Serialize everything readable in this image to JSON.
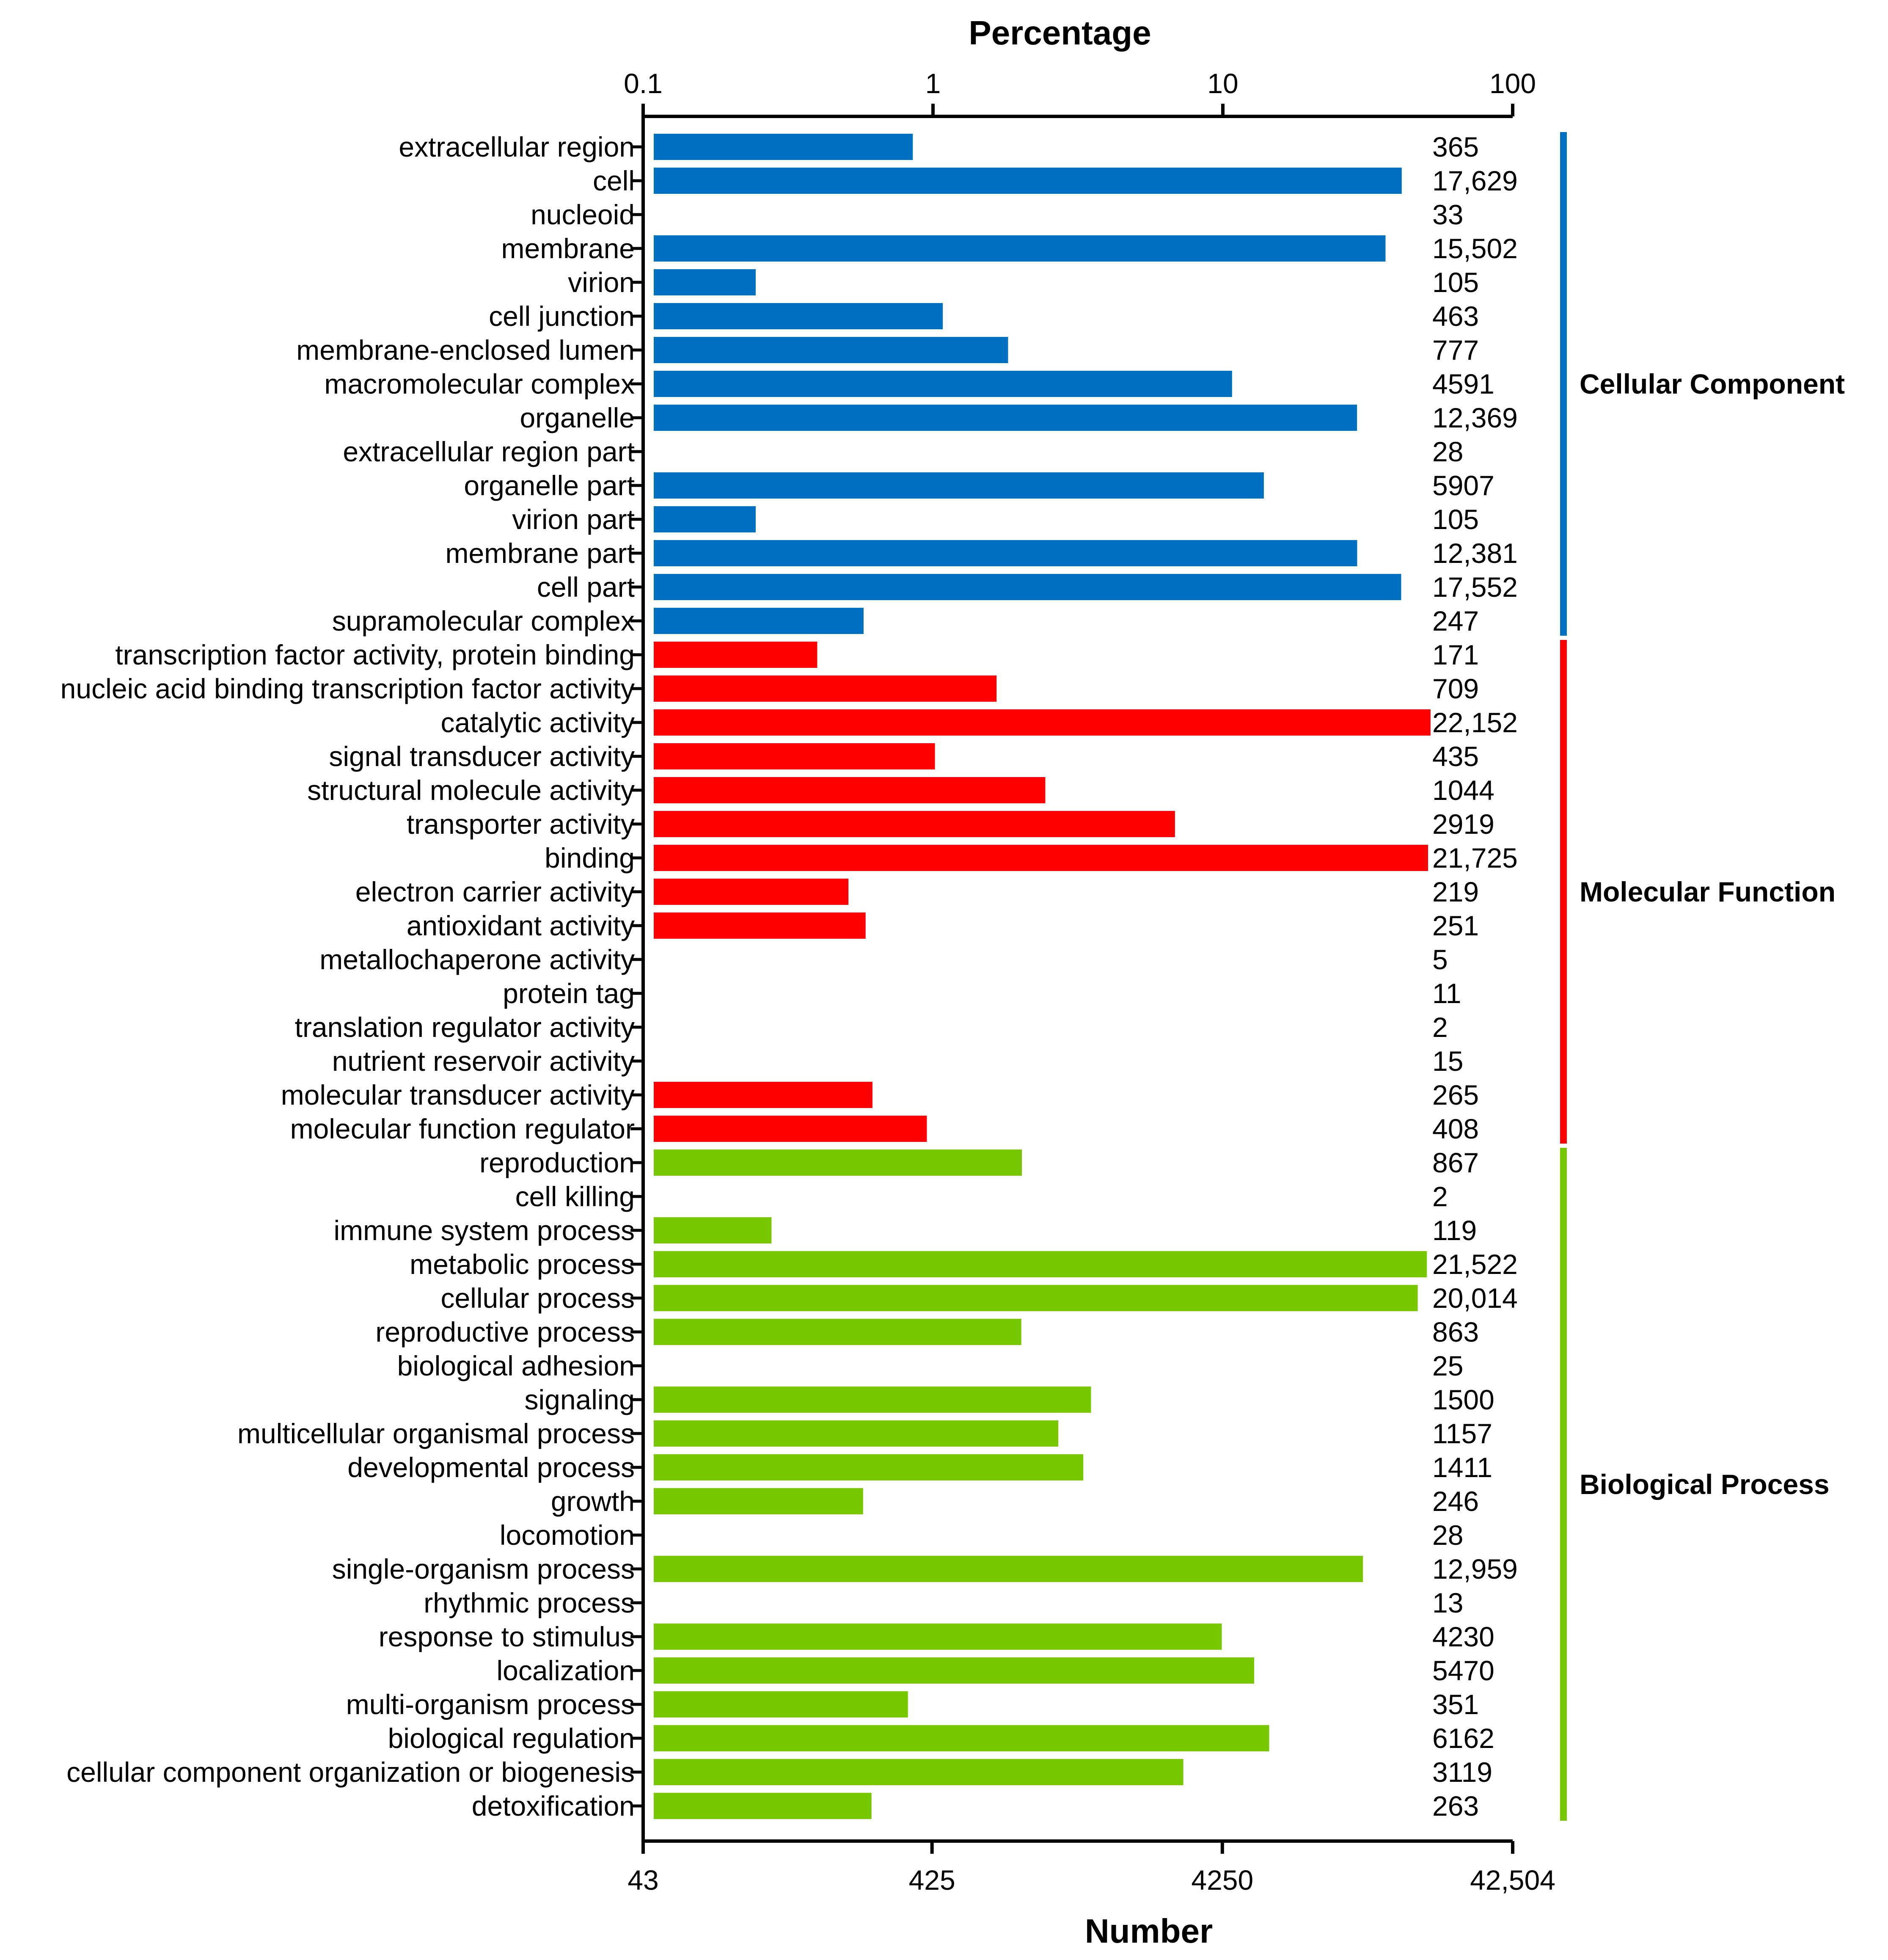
{
  "chart_data": {
    "type": "bar",
    "orientation": "horizontal",
    "x_scale": "log",
    "top_axis": {
      "title": "Percentage",
      "ticks": [
        0.1,
        1,
        10,
        100
      ],
      "tick_labels": [
        "0.1",
        "1",
        "10",
        "100"
      ],
      "range": [
        0.1,
        100
      ]
    },
    "bottom_axis": {
      "title": "Number",
      "ticks": [
        43,
        425,
        4250,
        42504
      ],
      "tick_labels": [
        "43",
        "425",
        "4250",
        "42,504"
      ],
      "range": [
        43,
        42504
      ]
    },
    "groups": [
      {
        "name": "Cellular Component",
        "color": "#0070C0",
        "start": 0,
        "end": 14
      },
      {
        "name": "Molecular Function",
        "color": "#FF0000",
        "start": 15,
        "end": 29
      },
      {
        "name": "Biological Process",
        "color": "#77C800",
        "start": 30,
        "end": 49
      }
    ],
    "categories": [
      "extracellular region",
      "cell",
      "nucleoid",
      "membrane",
      "virion",
      "cell junction",
      "membrane-enclosed lumen",
      "macromolecular complex",
      "organelle",
      "extracellular region part",
      "organelle part",
      "virion part",
      "membrane part",
      "cell part",
      "supramolecular complex",
      "transcription factor activity, protein binding",
      "nucleic acid binding transcription factor activity",
      "catalytic activity",
      "signal transducer activity",
      "structural molecule activity",
      "transporter activity",
      "binding",
      "electron carrier activity",
      "antioxidant activity",
      "metallochaperone activity",
      "protein tag",
      "translation regulator activity",
      "nutrient reservoir activity",
      "molecular transducer activity",
      "molecular function regulator",
      "reproduction",
      "cell killing",
      "immune system process",
      "metabolic process",
      "cellular process",
      "reproductive process",
      "biological adhesion",
      "signaling",
      "multicellular organismal process",
      "developmental process",
      "growth",
      "locomotion",
      "single-organism process",
      "rhythmic process",
      "response to stimulus",
      "localization",
      "multi-organism process",
      "biological regulation",
      "cellular component organization or biogenesis",
      "detoxification"
    ],
    "values": [
      365,
      17629,
      33,
      15502,
      105,
      463,
      777,
      4591,
      12369,
      28,
      5907,
      105,
      12381,
      17552,
      247,
      171,
      709,
      22152,
      435,
      1044,
      2919,
      21725,
      219,
      251,
      5,
      11,
      2,
      15,
      265,
      408,
      867,
      2,
      119,
      21522,
      20014,
      863,
      25,
      1500,
      1157,
      1411,
      246,
      28,
      12959,
      13,
      4230,
      5470,
      351,
      6162,
      3119,
      263
    ],
    "value_labels": [
      "365",
      "17,629",
      "33",
      "15,502",
      "105",
      "463",
      "777",
      "4591",
      "12,369",
      "28",
      "5907",
      "105",
      "12,381",
      "17,552",
      "247",
      "171",
      "709",
      "22,152",
      "435",
      "1044",
      "2919",
      "21,725",
      "219",
      "251",
      "5",
      "11",
      "2",
      "15",
      "265",
      "408",
      "867",
      "2",
      "119",
      "21,522",
      "20,014",
      "863",
      "25",
      "1500",
      "1157",
      "1411",
      "246",
      "28",
      "12,959",
      "13",
      "4230",
      "5470",
      "351",
      "6162",
      "3119",
      "263"
    ],
    "total_genes": 42504
  }
}
